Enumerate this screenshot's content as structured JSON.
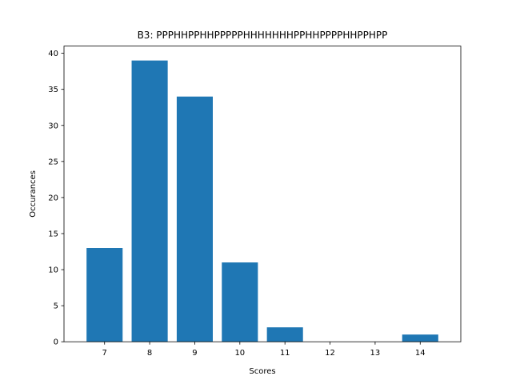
{
  "chart_data": {
    "type": "bar",
    "title": "B3: PPPHHPPHHPPPPPHHHHHHHPPHHPPPPHHPPHPP",
    "xlabel": "Scores",
    "ylabel": "Occurances",
    "categories": [
      7,
      8,
      9,
      10,
      11,
      12,
      13,
      14
    ],
    "values": [
      13,
      39,
      34,
      11,
      2,
      0,
      0,
      1
    ],
    "ylim": [
      0,
      41
    ],
    "yticks": [
      0,
      5,
      10,
      15,
      20,
      25,
      30,
      35,
      40
    ],
    "bar_color": "#1f77b4",
    "grid": false,
    "legend": "none"
  }
}
